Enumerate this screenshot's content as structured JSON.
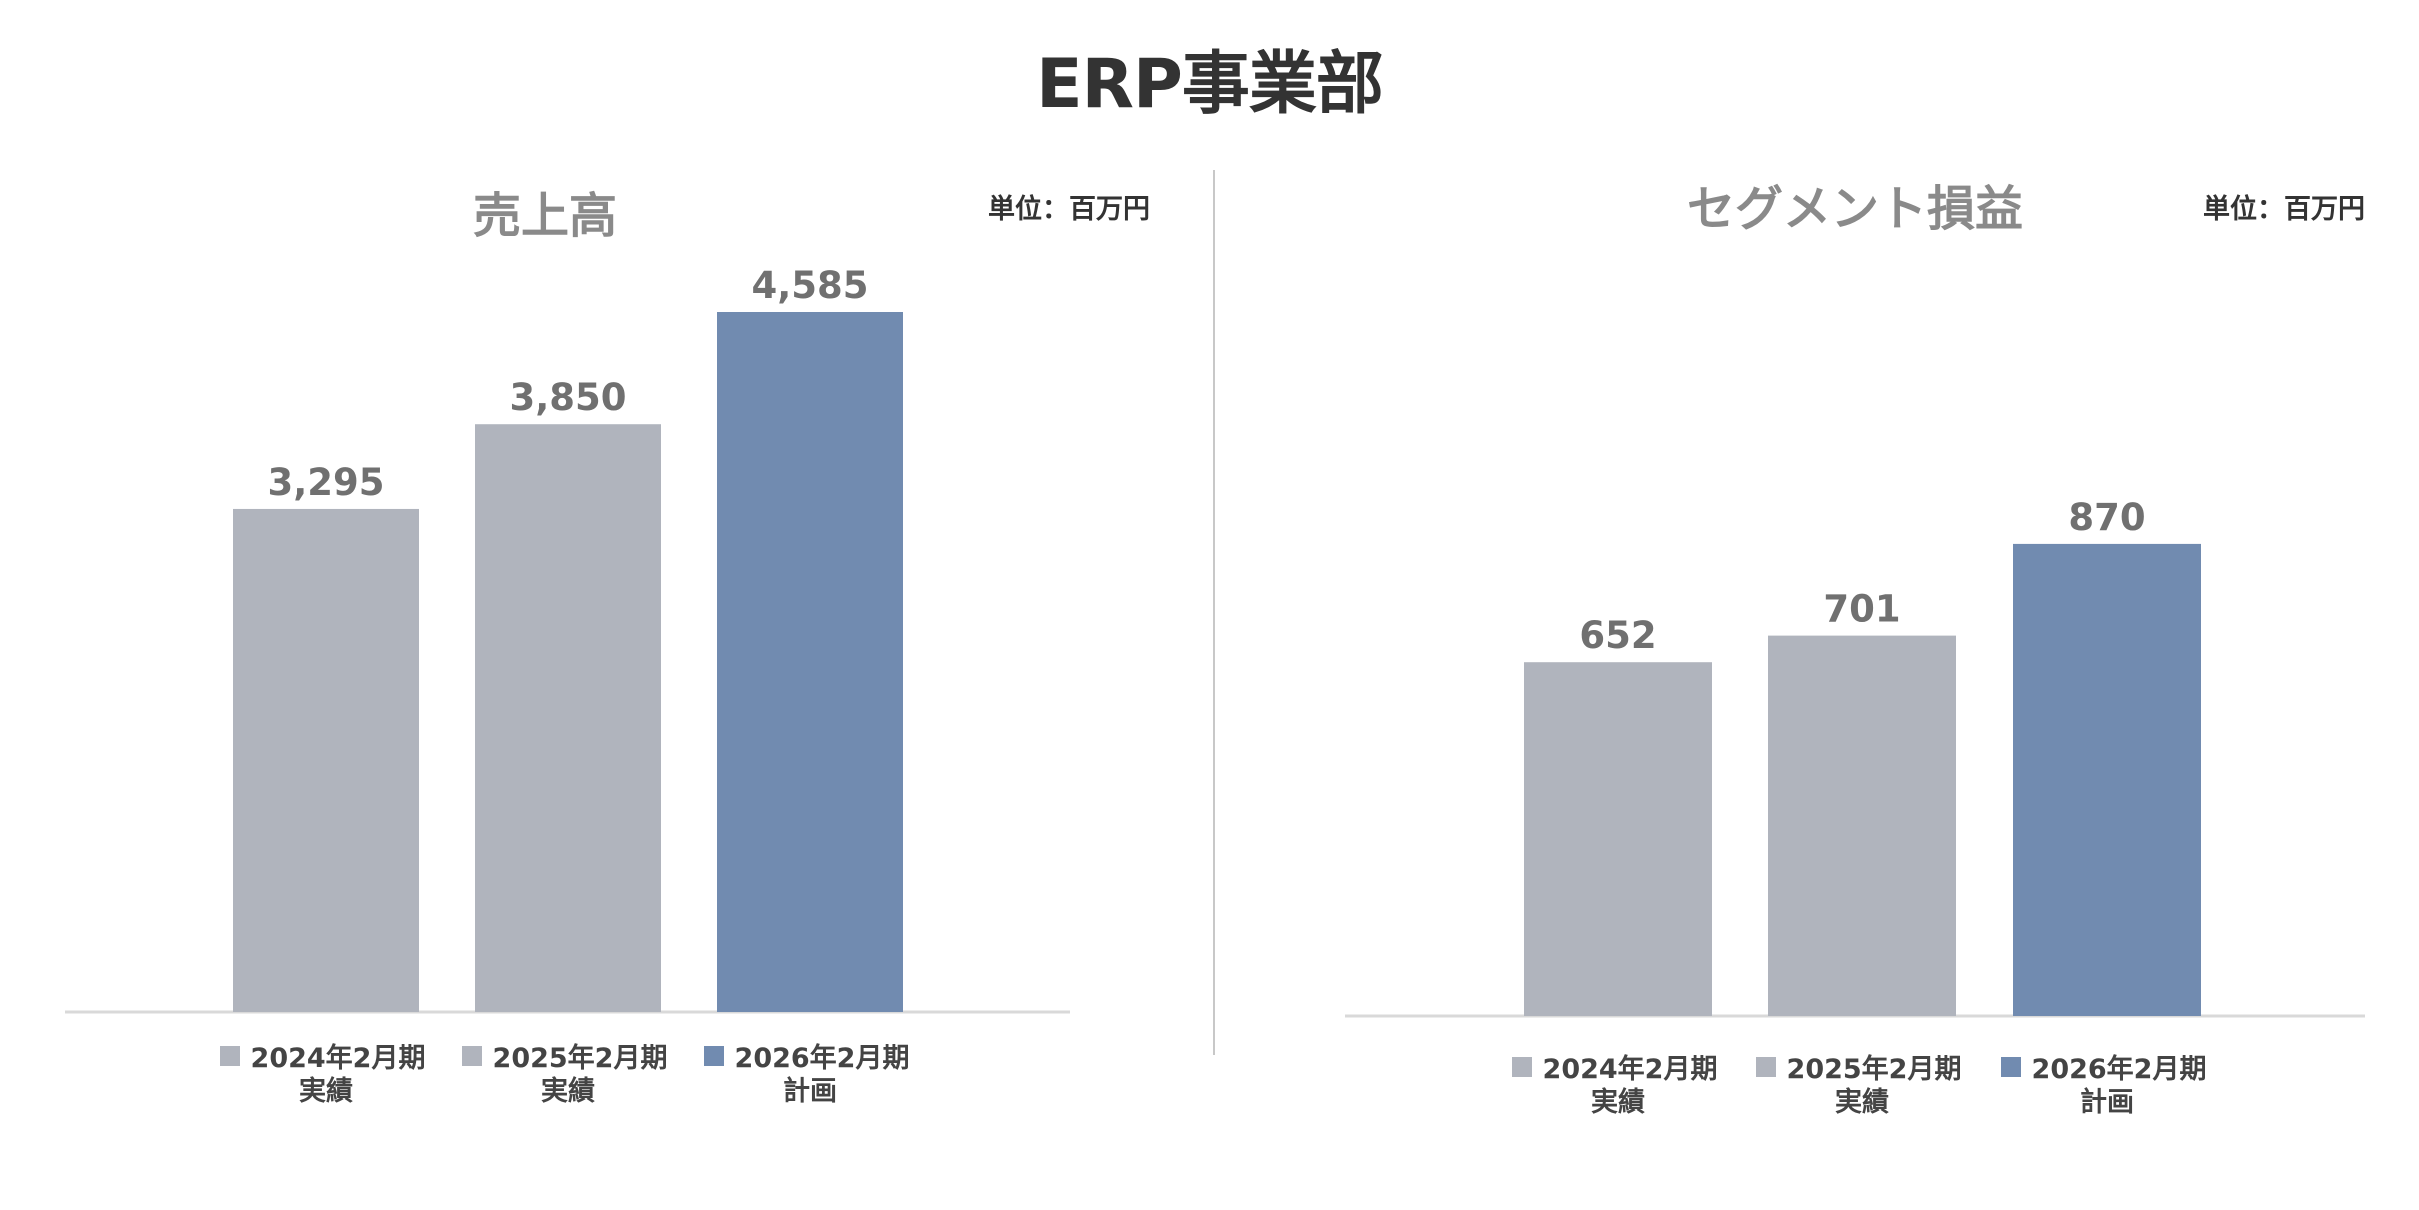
{
  "page_title": "ERP事業部",
  "colors": {
    "actual": "#b0b4bd",
    "plan": "#718bb0",
    "divider": "#c8c8c8",
    "axis": "#d9d9d9"
  },
  "chart_data": [
    {
      "type": "bar",
      "title": "売上高",
      "unit": "単位：百万円",
      "categories": [
        [
          "2024年2月期",
          "実績"
        ],
        [
          "2025年2月期",
          "実績"
        ],
        [
          "2026年2月期",
          "計画"
        ]
      ],
      "values": [
        3295,
        3850,
        4585
      ],
      "value_labels": [
        "3,295",
        "3,850",
        "4,585"
      ],
      "series_kind": [
        "actual",
        "actual",
        "plan"
      ],
      "ylim": [
        0,
        4585
      ],
      "legend": "below-bars",
      "grid": false
    },
    {
      "type": "bar",
      "title": "セグメント損益",
      "unit": "単位：百万円",
      "categories": [
        [
          "2024年2月期",
          "実績"
        ],
        [
          "2025年2月期",
          "実績"
        ],
        [
          "2026年2月期",
          "計画"
        ]
      ],
      "values": [
        652,
        701,
        870
      ],
      "value_labels": [
        "652",
        "701",
        "870"
      ],
      "series_kind": [
        "actual",
        "actual",
        "plan"
      ],
      "ylim": [
        0,
        1290
      ],
      "legend": "below-bars",
      "grid": false
    }
  ]
}
